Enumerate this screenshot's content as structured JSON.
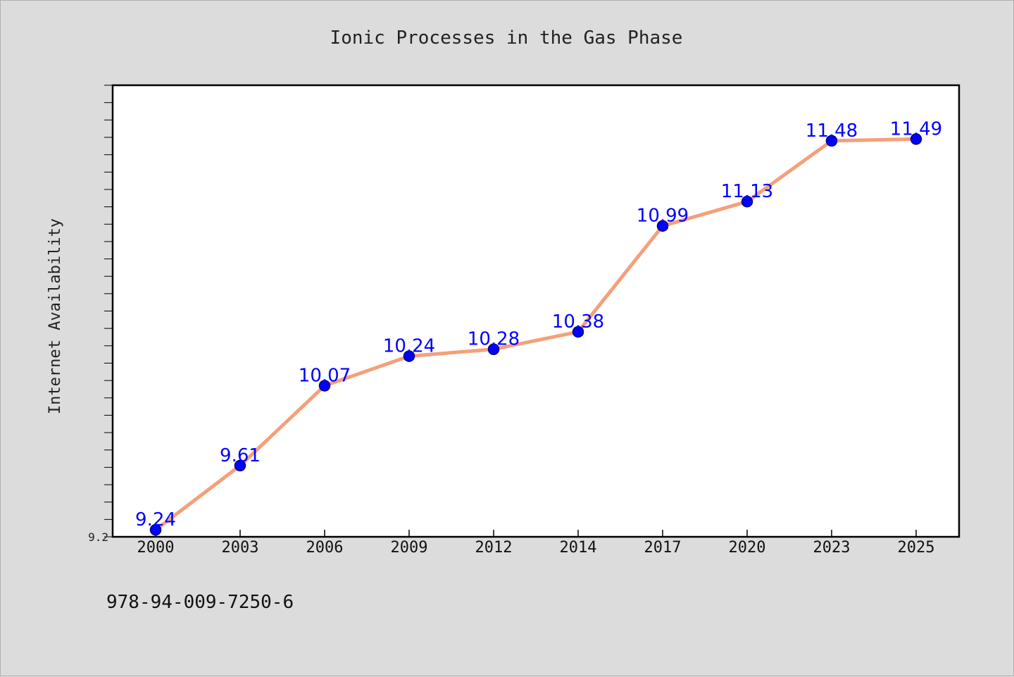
{
  "chart_data": {
    "type": "line",
    "title": "Ionic Processes in the Gas Phase",
    "xlabel": "",
    "ylabel": "Internet Availability",
    "categories": [
      "2000",
      "2003",
      "2006",
      "2009",
      "2012",
      "2014",
      "2017",
      "2020",
      "2023",
      "2025"
    ],
    "series": [
      {
        "values": [
          9.24,
          9.61,
          10.07,
          10.24,
          10.28,
          10.38,
          10.99,
          11.13,
          11.48,
          11.49
        ],
        "data_labels": [
          "9.24",
          "9.61",
          "10.07",
          "10.24",
          "10.28",
          "10.38",
          "10.99",
          "11.13",
          "11.48",
          "11.49"
        ]
      }
    ],
    "ylim": [
      9.2,
      11.8
    ],
    "y_tick_labels": [
      "9.2"
    ],
    "grid": false,
    "legend": "none",
    "colors": {
      "line": "#f4a07a",
      "marker": "#0000ff",
      "marker_edge": "#000080",
      "data_label": "#0000ff",
      "plot_background": "#ffffff",
      "page_background": "#dcdcdc"
    }
  },
  "footer": {
    "isbn": "978-94-009-7250-6"
  }
}
